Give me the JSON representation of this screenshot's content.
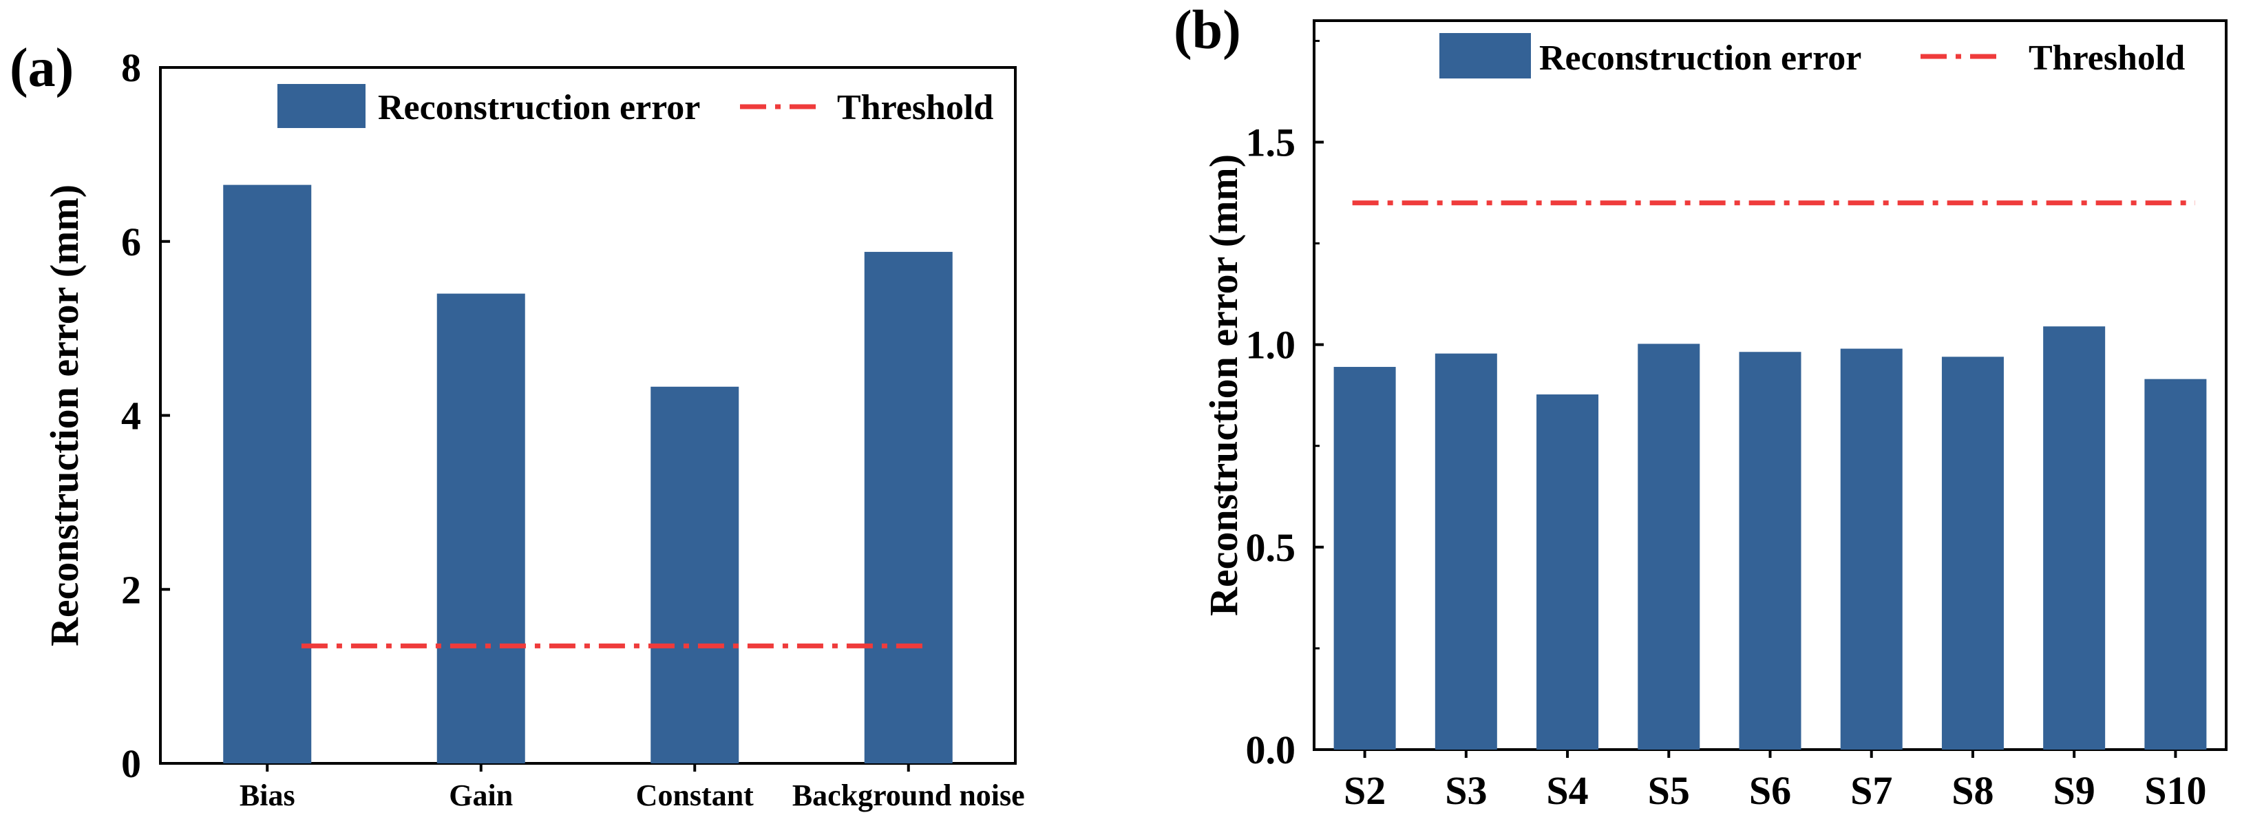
{
  "colors": {
    "bar": "#346296",
    "threshold": "#ef3b3b",
    "axis": "#000000",
    "background": "#ffffff"
  },
  "chart_data": [
    {
      "panel": "(a)",
      "type": "bar",
      "categories": [
        "Bias",
        "Gain",
        "Constant",
        "Background noise"
      ],
      "values": [
        6.65,
        5.4,
        4.33,
        5.88
      ],
      "threshold": 1.35,
      "ylabel": "Reconstruction error (mm)",
      "xlabel": "",
      "ylim": [
        0,
        8
      ],
      "yticks": [
        0,
        2,
        4,
        6,
        8
      ],
      "ytick_labels": [
        "0",
        "2",
        "4",
        "6",
        "8"
      ],
      "legend": {
        "position": "top-right",
        "entries": [
          "Reconstruction error",
          "Threshold"
        ]
      }
    },
    {
      "panel": "(b)",
      "type": "bar",
      "categories": [
        "S2",
        "S3",
        "S4",
        "S5",
        "S6",
        "S7",
        "S8",
        "S9",
        "S10"
      ],
      "values": [
        0.945,
        0.978,
        0.877,
        1.002,
        0.982,
        0.99,
        0.97,
        1.045,
        0.915
      ],
      "threshold": 1.35,
      "ylabel": "Reconstruction error (mm)",
      "xlabel": "",
      "ylim": [
        0,
        1.8
      ],
      "yticks": [
        0.0,
        0.5,
        1.0,
        1.5
      ],
      "ytick_labels": [
        "0.0",
        "0.5",
        "1.0",
        "1.5"
      ],
      "legend": {
        "position": "top-right",
        "entries": [
          "Reconstruction error",
          "Threshold"
        ]
      }
    }
  ]
}
